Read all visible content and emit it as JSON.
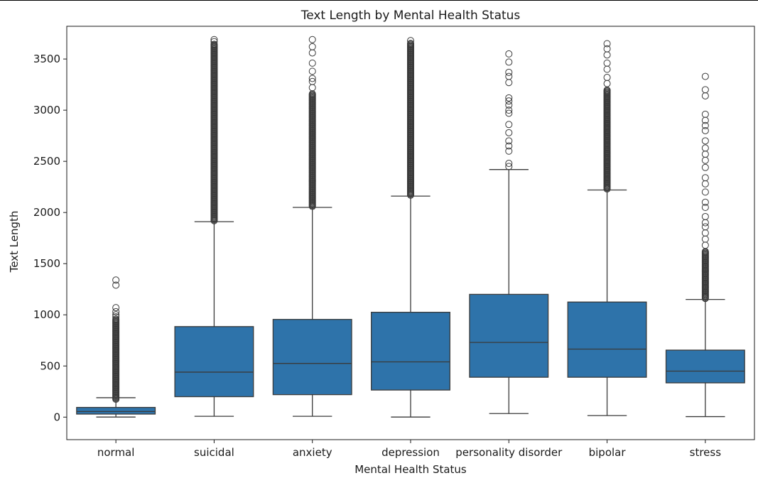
{
  "chart_data": {
    "type": "box",
    "title": "Text Length by Mental Health Status",
    "xlabel": "Mental Health Status",
    "ylabel": "Text Length",
    "ylim": [
      -220,
      3820
    ],
    "yticks": [
      0,
      500,
      1000,
      1500,
      2000,
      2500,
      3000,
      3500
    ],
    "grid": false,
    "legend": "none",
    "box_color": "#2e73aa",
    "line_color": "#3a3a3a",
    "categories": [
      "normal",
      "suicidal",
      "anxiety",
      "depression",
      "personality disorder",
      "bipolar",
      "stress"
    ],
    "boxes": [
      {
        "whisker_low": 1,
        "q1": 30,
        "median": 55,
        "q3": 95,
        "whisker_high": 190,
        "outlier_band": [
          175,
          960
        ],
        "outliers": [
          980,
          1000,
          1030,
          1070,
          1290,
          1340
        ]
      },
      {
        "whisker_low": 8,
        "q1": 200,
        "median": 440,
        "q3": 885,
        "whisker_high": 1910,
        "outlier_band": [
          1920,
          3650
        ],
        "outliers": [
          3670,
          3690
        ]
      },
      {
        "whisker_low": 8,
        "q1": 220,
        "median": 525,
        "q3": 955,
        "whisker_high": 2050,
        "outlier_band": [
          2060,
          3160
        ],
        "outliers": [
          3220,
          3280,
          3310,
          3380,
          3460,
          3560,
          3620,
          3690
        ]
      },
      {
        "whisker_low": 1,
        "q1": 265,
        "median": 540,
        "q3": 1025,
        "whisker_high": 2160,
        "outlier_band": [
          2170,
          3660
        ],
        "outliers": [
          3680
        ]
      },
      {
        "whisker_low": 35,
        "q1": 390,
        "median": 730,
        "q3": 1200,
        "whisker_high": 2420,
        "outlier_band": [],
        "outliers": [
          2450,
          2480,
          2600,
          2650,
          2700,
          2780,
          2860,
          2970,
          3000,
          3050,
          3090,
          3120,
          3270,
          3330,
          3370,
          3470,
          3550
        ]
      },
      {
        "whisker_low": 15,
        "q1": 390,
        "median": 665,
        "q3": 1125,
        "whisker_high": 2220,
        "outlier_band": [
          2230,
          3200
        ],
        "outliers": [
          3260,
          3320,
          3400,
          3460,
          3540,
          3600,
          3650
        ]
      },
      {
        "whisker_low": 5,
        "q1": 335,
        "median": 450,
        "q3": 655,
        "whisker_high": 1150,
        "outlier_band": [
          1160,
          1620
        ],
        "outliers": [
          1680,
          1740,
          1800,
          1860,
          1900,
          1960,
          2050,
          2100,
          2200,
          2280,
          2340,
          2440,
          2510,
          2570,
          2630,
          2700,
          2800,
          2850,
          2900,
          2960,
          3140,
          3200,
          3330
        ]
      }
    ]
  }
}
